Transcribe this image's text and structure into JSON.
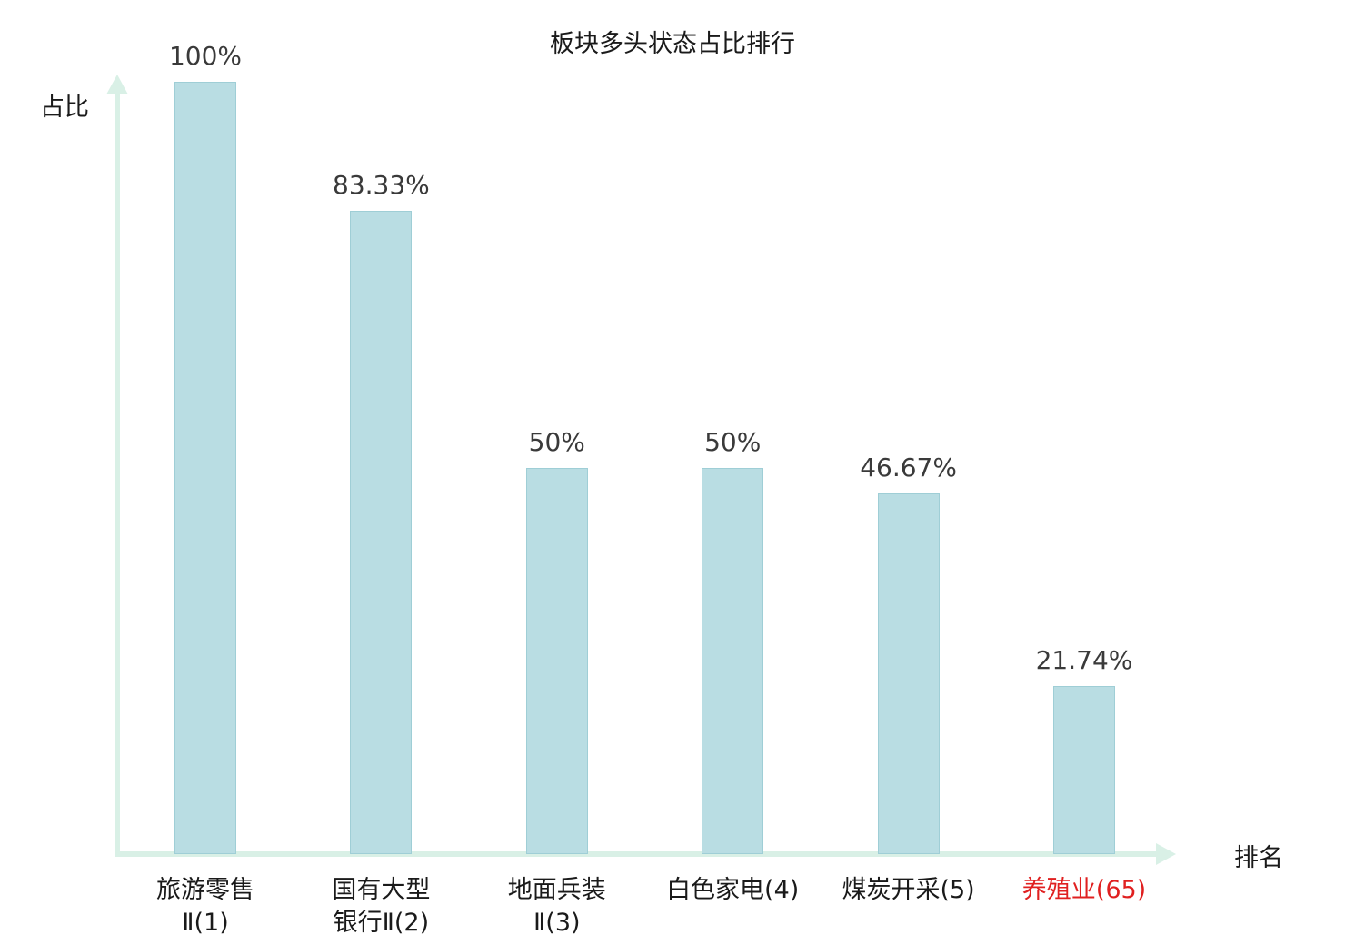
{
  "chart_data": {
    "type": "bar",
    "title": "板块多头状态占比排行",
    "xlabel": "排名",
    "ylabel": "占比",
    "ylim": [
      0,
      100
    ],
    "grid": false,
    "legend": "none",
    "categories": [
      "旅游零售Ⅱ(1)",
      "国有大型银行Ⅱ(2)",
      "地面兵装Ⅱ(3)",
      "白色家电(4)",
      "煤炭开采(5)",
      "养殖业(65)"
    ],
    "values": [
      100,
      83.33,
      50,
      50,
      46.67,
      21.74
    ],
    "value_labels": [
      "100%",
      "83.33%",
      "50%",
      "50%",
      "46.67%",
      "21.74%"
    ],
    "category_label_lines": [
      [
        "旅游零售",
        "Ⅱ(1)"
      ],
      [
        "国有大型",
        "银行Ⅱ(2)"
      ],
      [
        "地面兵装",
        "Ⅱ(3)"
      ],
      [
        "白色家电(4)"
      ],
      [
        "煤炭开采(5)"
      ],
      [
        "养殖业(65)"
      ]
    ],
    "highlighted_category_index": 5,
    "colors": {
      "bar_fill": "#b9dde3",
      "bar_border": "#9fced6",
      "axis": "#d9f0e6",
      "value_text": "#3a3a3a",
      "category_text": "#1a1a1a",
      "highlight_text": "#e02020"
    }
  }
}
